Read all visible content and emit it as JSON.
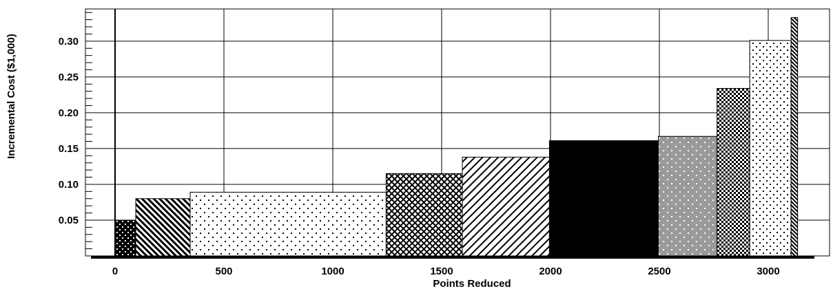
{
  "chart_data": {
    "type": "bar",
    "subtype": "variable-width step bars",
    "xlabel": "Points Reduced",
    "ylabel": "Incremental Cost ($1,000)",
    "xlim": [
      -130,
      3270
    ],
    "ylim": [
      0,
      0.345
    ],
    "x_ticks": [
      0,
      500,
      1000,
      1500,
      2000,
      2500,
      3000
    ],
    "y_ticks": [
      0.05,
      0.1,
      0.15,
      0.2,
      0.25,
      0.3
    ],
    "x_tick_labels": [
      "0",
      "500",
      "1000",
      "1500",
      "2000",
      "2500",
      "3000"
    ],
    "y_tick_labels": [
      "0.05",
      "0.10",
      "0.15",
      "0.20",
      "0.25",
      "0.30"
    ],
    "grid": true,
    "bars": [
      {
        "x_start": 0,
        "x_end": 95,
        "value": 0.05,
        "pattern": "black-dots"
      },
      {
        "x_start": 95,
        "x_end": 345,
        "value": 0.08,
        "pattern": "diagonal-hatch"
      },
      {
        "x_start": 345,
        "x_end": 1245,
        "value": 0.089,
        "pattern": "light-dots"
      },
      {
        "x_start": 1245,
        "x_end": 1595,
        "value": 0.115,
        "pattern": "crosshatch"
      },
      {
        "x_start": 1595,
        "x_end": 1995,
        "value": 0.138,
        "pattern": "back-diagonal"
      },
      {
        "x_start": 1995,
        "x_end": 2495,
        "value": 0.161,
        "pattern": "solid-black"
      },
      {
        "x_start": 2495,
        "x_end": 2765,
        "value": 0.167,
        "pattern": "gray-dots"
      },
      {
        "x_start": 2765,
        "x_end": 2915,
        "value": 0.234,
        "pattern": "checker"
      },
      {
        "x_start": 2915,
        "x_end": 3105,
        "value": 0.301,
        "pattern": "sparse-dots"
      },
      {
        "x_start": 3105,
        "x_end": 3135,
        "value": 0.333,
        "pattern": "dense-hatch"
      }
    ]
  }
}
